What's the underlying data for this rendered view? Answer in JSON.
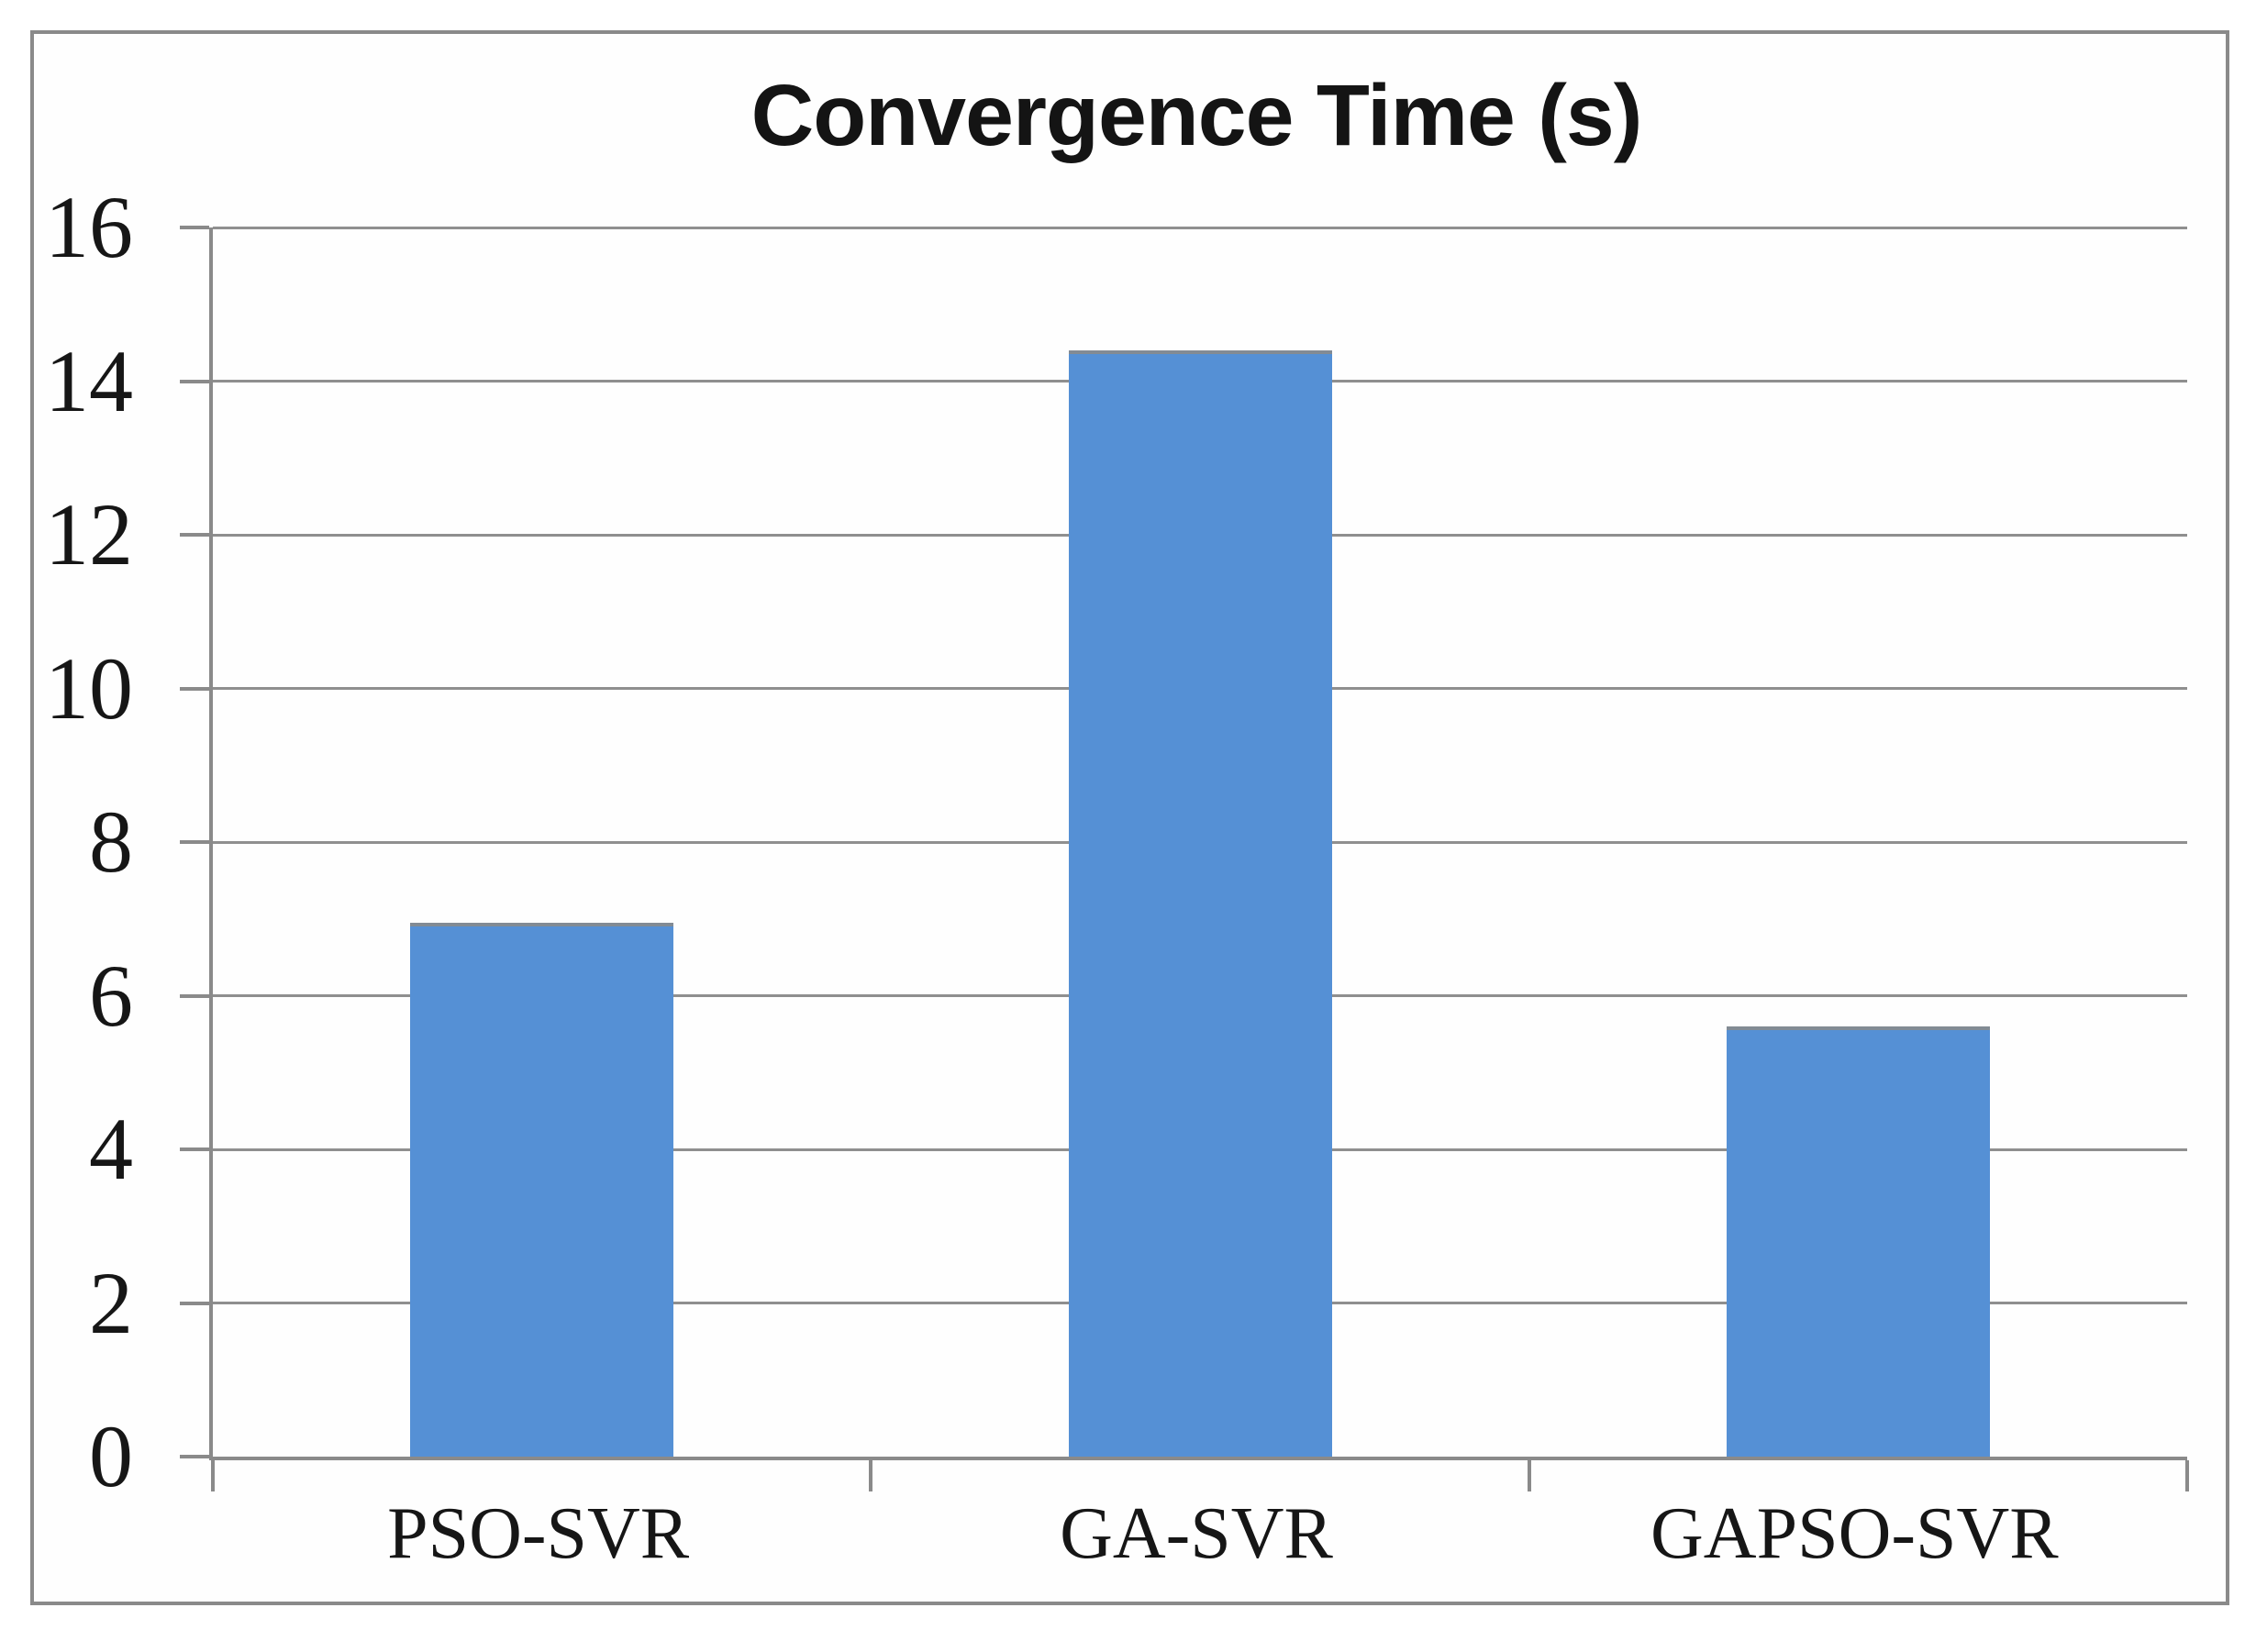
{
  "chart_data": {
    "type": "bar",
    "title": "Convergence Time (s)",
    "categories": [
      "PSO-SVR",
      "GA-SVR",
      "GAPSO-SVR"
    ],
    "values": [
      6.95,
      14.4,
      5.6
    ],
    "xlabel": "",
    "ylabel": "",
    "ylim": [
      0,
      16
    ],
    "yticks": [
      0,
      2,
      4,
      6,
      8,
      10,
      12,
      14,
      16
    ],
    "grid": true,
    "legend_position": "none",
    "colors": {
      "bar_fill": "#5590d5",
      "bar_top_edge": "#828b94",
      "gridline": "#8f8f8f",
      "axis": "#8a8a8a",
      "frame_border": "#8a8a8a",
      "text": "#161616",
      "title_text": "#141414",
      "background": "#ffffff"
    }
  }
}
